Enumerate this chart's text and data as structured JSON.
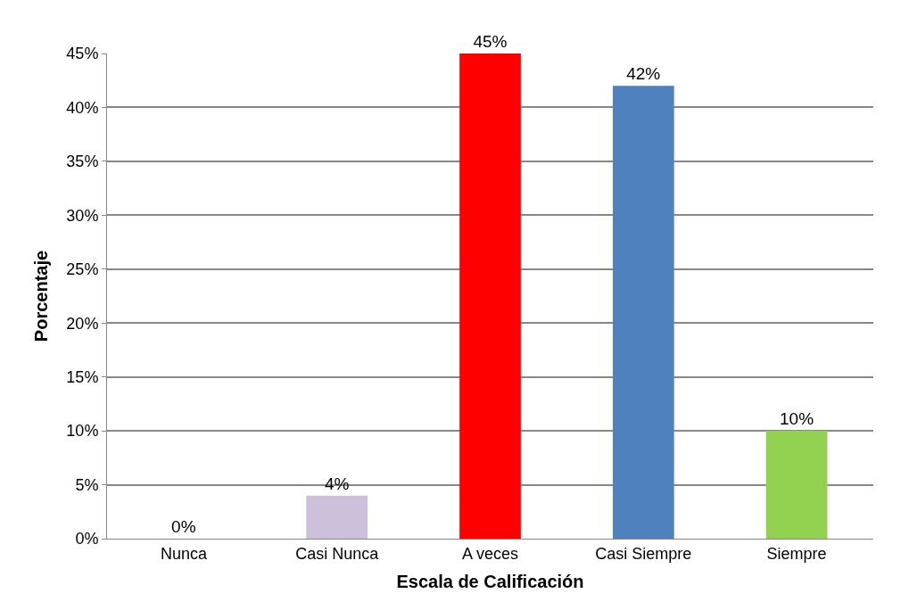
{
  "chart_data": {
    "type": "bar",
    "xlabel": "Escala de Calificación",
    "ylabel": "Porcentaje",
    "categories": [
      "Nunca",
      "Casi Nunca",
      "A veces",
      "Casi Siempre",
      "Siempre"
    ],
    "values": [
      0,
      4,
      45,
      42,
      10
    ],
    "colors": [
      "#c8c800",
      "#ccc0da",
      "#ff0000",
      "#4f81bd",
      "#92d050"
    ],
    "value_labels": [
      "0%",
      "4%",
      "45%",
      "42%",
      "10%"
    ],
    "ylim": [
      0,
      45
    ],
    "yticks": [
      {
        "value": 0,
        "label": "0%"
      },
      {
        "value": 5,
        "label": "5%"
      },
      {
        "value": 10,
        "label": "10%"
      },
      {
        "value": 15,
        "label": "15%"
      },
      {
        "value": 20,
        "label": "20%"
      },
      {
        "value": 25,
        "label": "25%"
      },
      {
        "value": 30,
        "label": "30%"
      },
      {
        "value": 35,
        "label": "35%"
      },
      {
        "value": 40,
        "label": "40%"
      },
      {
        "value": 45,
        "label": "45%"
      }
    ],
    "grid": "y"
  }
}
